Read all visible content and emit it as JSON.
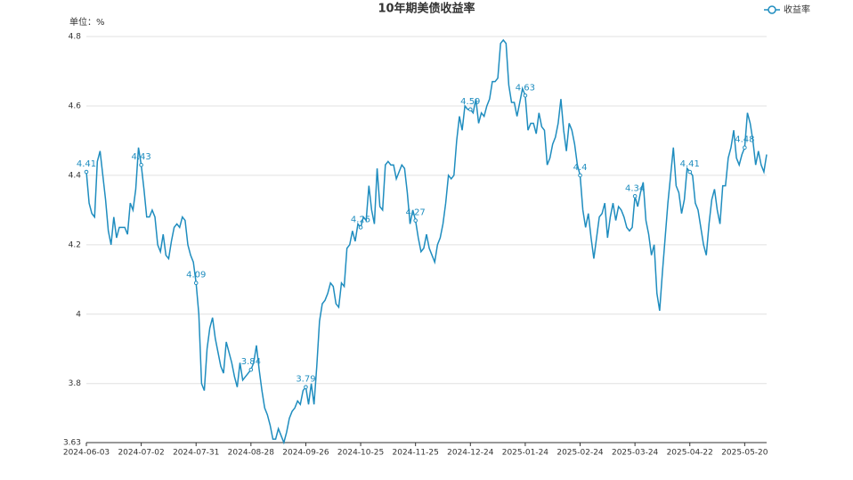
{
  "chart_data": {
    "type": "line",
    "title": "10年期美债收益率",
    "y_axis_label": "单位：%",
    "legend": "top-right",
    "grid": true,
    "data_label_interval": 20,
    "ylim": [
      3.63,
      4.8
    ],
    "yticks": [
      3.63,
      3.8,
      4,
      4.2,
      4.4,
      4.6,
      4.8
    ],
    "categories": [
      "2024-06-03",
      null,
      null,
      null,
      null,
      null,
      null,
      null,
      null,
      null,
      null,
      null,
      null,
      null,
      null,
      null,
      null,
      null,
      null,
      null,
      "2024-07-02",
      null,
      null,
      null,
      null,
      null,
      null,
      null,
      null,
      null,
      null,
      null,
      null,
      null,
      null,
      null,
      null,
      null,
      null,
      null,
      "2024-07-31",
      null,
      null,
      null,
      null,
      null,
      null,
      null,
      null,
      null,
      null,
      null,
      null,
      null,
      null,
      null,
      null,
      null,
      null,
      null,
      "2024-08-28",
      null,
      null,
      null,
      null,
      null,
      null,
      null,
      null,
      null,
      null,
      null,
      null,
      null,
      null,
      null,
      null,
      null,
      null,
      null,
      "2024-09-26",
      null,
      null,
      null,
      null,
      null,
      null,
      null,
      null,
      null,
      null,
      null,
      null,
      null,
      null,
      null,
      null,
      null,
      null,
      null,
      "2024-10-25",
      null,
      null,
      null,
      null,
      null,
      null,
      null,
      null,
      null,
      null,
      null,
      null,
      null,
      null,
      null,
      null,
      null,
      null,
      null,
      "2024-11-25",
      null,
      null,
      null,
      null,
      null,
      null,
      null,
      null,
      null,
      null,
      null,
      null,
      null,
      null,
      null,
      null,
      null,
      null,
      null,
      "2024-12-24",
      null,
      null,
      null,
      null,
      null,
      null,
      null,
      null,
      null,
      null,
      null,
      null,
      null,
      null,
      null,
      null,
      null,
      null,
      null,
      "2025-01-24",
      null,
      null,
      null,
      null,
      null,
      null,
      null,
      null,
      null,
      null,
      null,
      null,
      null,
      null,
      null,
      null,
      null,
      null,
      null,
      "2025-02-24",
      null,
      null,
      null,
      null,
      null,
      null,
      null,
      null,
      null,
      null,
      null,
      null,
      null,
      null,
      null,
      null,
      null,
      null,
      null,
      "2025-03-24",
      null,
      null,
      null,
      null,
      null,
      null,
      null,
      null,
      null,
      null,
      null,
      null,
      null,
      null,
      null,
      null,
      null,
      null,
      null,
      "2025-04-22",
      null,
      null,
      null,
      null,
      null,
      null,
      null,
      null,
      null,
      null,
      null,
      null,
      null,
      null,
      null,
      null,
      null,
      null,
      null,
      "2025-05-20",
      null,
      null,
      null,
      null,
      null,
      null,
      null,
      null
    ],
    "series": [
      {
        "name": "收益率",
        "color": "#1f8dbf",
        "values": [
          4.41,
          4.32,
          4.29,
          4.28,
          4.44,
          4.47,
          4.4,
          4.33,
          4.24,
          4.2,
          4.28,
          4.22,
          4.25,
          4.25,
          4.25,
          4.23,
          4.32,
          4.3,
          4.36,
          4.48,
          4.43,
          4.36,
          4.28,
          4.28,
          4.3,
          4.28,
          4.2,
          4.18,
          4.23,
          4.17,
          4.16,
          4.21,
          4.25,
          4.26,
          4.25,
          4.28,
          4.27,
          4.2,
          4.17,
          4.15,
          4.09,
          4.0,
          3.8,
          3.78,
          3.9,
          3.96,
          3.99,
          3.93,
          3.89,
          3.85,
          3.83,
          3.92,
          3.89,
          3.86,
          3.82,
          3.79,
          3.86,
          3.81,
          3.82,
          3.83,
          3.84,
          3.86,
          3.91,
          3.84,
          3.78,
          3.73,
          3.71,
          3.68,
          3.64,
          3.64,
          3.67,
          3.65,
          3.63,
          3.66,
          3.7,
          3.72,
          3.73,
          3.75,
          3.74,
          3.78,
          3.79,
          3.74,
          3.8,
          3.74,
          3.85,
          3.98,
          4.03,
          4.04,
          4.06,
          4.09,
          4.08,
          4.03,
          4.02,
          4.09,
          4.08,
          4.19,
          4.2,
          4.24,
          4.21,
          4.26,
          4.25,
          4.28,
          4.27,
          4.37,
          4.3,
          4.26,
          4.42,
          4.31,
          4.3,
          4.43,
          4.44,
          4.43,
          4.43,
          4.39,
          4.41,
          4.43,
          4.42,
          4.35,
          4.26,
          4.3,
          4.27,
          4.22,
          4.18,
          4.19,
          4.23,
          4.19,
          4.17,
          4.15,
          4.2,
          4.22,
          4.26,
          4.32,
          4.4,
          4.39,
          4.4,
          4.5,
          4.57,
          4.53,
          4.6,
          4.59,
          4.59,
          4.58,
          4.62,
          4.55,
          4.58,
          4.57,
          4.6,
          4.62,
          4.67,
          4.67,
          4.68,
          4.78,
          4.79,
          4.78,
          4.66,
          4.61,
          4.61,
          4.57,
          4.61,
          4.65,
          4.63,
          4.53,
          4.55,
          4.55,
          4.52,
          4.58,
          4.54,
          4.53,
          4.43,
          4.45,
          4.49,
          4.51,
          4.55,
          4.62,
          4.53,
          4.47,
          4.55,
          4.53,
          4.49,
          4.43,
          4.4,
          4.3,
          4.25,
          4.29,
          4.22,
          4.16,
          4.22,
          4.28,
          4.29,
          4.32,
          4.22,
          4.28,
          4.32,
          4.27,
          4.31,
          4.3,
          4.28,
          4.25,
          4.24,
          4.25,
          4.34,
          4.31,
          4.35,
          4.38,
          4.27,
          4.23,
          4.17,
          4.2,
          4.06,
          4.01,
          4.12,
          4.22,
          4.32,
          4.4,
          4.48,
          4.37,
          4.35,
          4.29,
          4.33,
          4.42,
          4.41,
          4.4,
          4.32,
          4.3,
          4.25,
          4.2,
          4.17,
          4.26,
          4.33,
          4.36,
          4.3,
          4.26,
          4.37,
          4.37,
          4.45,
          4.48,
          4.53,
          4.45,
          4.43,
          4.46,
          4.48,
          4.58,
          4.55,
          4.5,
          4.43,
          4.47,
          4.43,
          4.41,
          4.46
        ]
      }
    ]
  }
}
